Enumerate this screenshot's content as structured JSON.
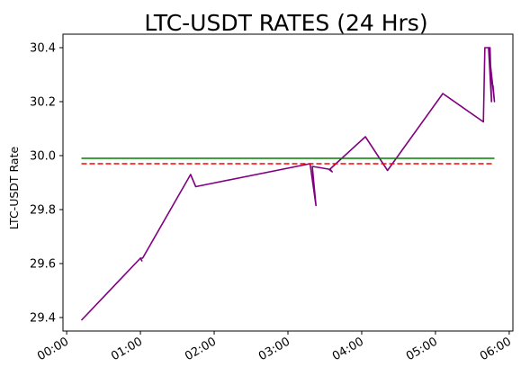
{
  "chart_data": {
    "type": "line",
    "title": "LTC-USDT RATES (24 Hrs)",
    "xlabel": "",
    "ylabel": "LTC-USDT Rate",
    "x_ticks": [
      "00:00",
      "01:00",
      "02:00",
      "03:00",
      "04:00",
      "05:00",
      "06:00"
    ],
    "y_ticks": [
      "29.4",
      "29.6",
      "29.8",
      "30.0",
      "30.2",
      "30.4"
    ],
    "xlim": [
      -0.05,
      6.05
    ],
    "ylim": [
      29.35,
      30.45
    ],
    "grid": false,
    "colors": {
      "price": "#800080",
      "solid_ref": "#008000",
      "dashed_ref": "#ff0000"
    },
    "series": [
      {
        "style": "solid",
        "color": "#800080",
        "x": [
          0.2,
          1.0,
          1.02,
          1.0,
          1.03,
          1.68,
          1.75,
          3.3,
          3.38,
          3.33,
          3.55,
          3.6,
          3.57,
          4.05,
          4.35,
          5.1,
          5.65,
          5.67,
          5.72,
          5.74,
          5.76,
          5.72,
          5.8,
          5.78
        ],
        "y": [
          29.39,
          29.62,
          29.61,
          29.62,
          29.62,
          29.93,
          29.885,
          29.97,
          29.815,
          29.96,
          29.95,
          29.94,
          29.95,
          30.07,
          29.945,
          30.23,
          30.125,
          30.4,
          30.4,
          30.4,
          30.2,
          30.4,
          30.2,
          30.26
        ]
      },
      {
        "style": "solid",
        "color": "#008000",
        "x": [
          0.2,
          5.8
        ],
        "y": [
          29.99,
          29.99
        ]
      },
      {
        "style": "dashed",
        "color": "#ff0000",
        "x": [
          0.2,
          5.8
        ],
        "y": [
          29.97,
          29.97
        ]
      }
    ]
  }
}
